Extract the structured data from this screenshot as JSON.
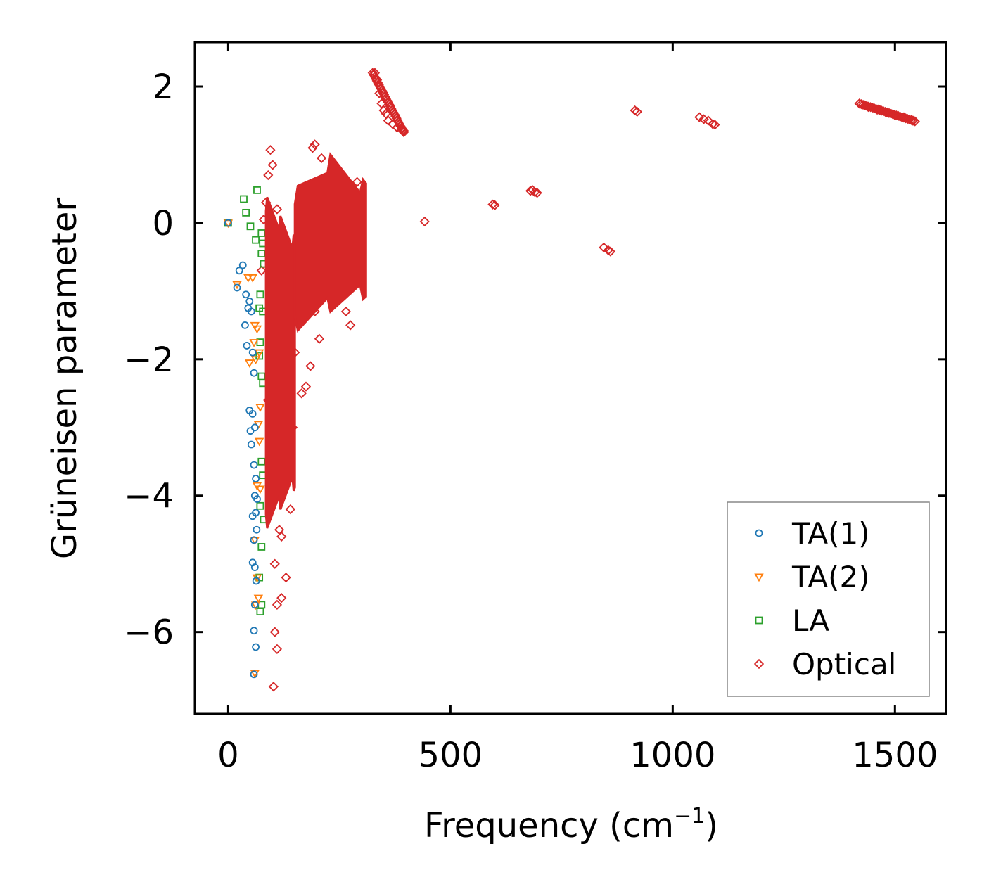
{
  "chart_data": {
    "type": "scatter",
    "title": "",
    "xlabel": "Frequency (cm",
    "xlabel_sup": "−1",
    "xlabel_close": ")",
    "ylabel": "Grüneisen parameter",
    "xlim": [
      -75,
      1615
    ],
    "ylim": [
      -7.2,
      2.65
    ],
    "xticks": [
      0,
      500,
      1000,
      1500
    ],
    "xtick_labels": [
      "0",
      "500",
      "1000",
      "1500"
    ],
    "yticks": [
      2,
      0,
      -2,
      -4,
      -6
    ],
    "ytick_labels": [
      "2",
      "0",
      "−2",
      "−4",
      "−6"
    ],
    "grid": false,
    "legend_position": "bottom-right",
    "series": [
      {
        "name": "TA(1)",
        "marker": "circle",
        "color": "#1f77b4",
        "points": [
          [
            0,
            0
          ],
          [
            25,
            -0.7
          ],
          [
            33,
            -0.62
          ],
          [
            20,
            -0.95
          ],
          [
            40,
            -1.05
          ],
          [
            48,
            -1.15
          ],
          [
            52,
            -1.3
          ],
          [
            45,
            -1.25
          ],
          [
            38,
            -1.5
          ],
          [
            42,
            -1.8
          ],
          [
            55,
            -1.9
          ],
          [
            58,
            -2.2
          ],
          [
            48,
            -2.75
          ],
          [
            55,
            -2.8
          ],
          [
            50,
            -3.05
          ],
          [
            60,
            -3.0
          ],
          [
            52,
            -3.25
          ],
          [
            58,
            -3.55
          ],
          [
            62,
            -3.75
          ],
          [
            60,
            -4.0
          ],
          [
            65,
            -4.05
          ],
          [
            55,
            -4.3
          ],
          [
            62,
            -4.25
          ],
          [
            58,
            -4.65
          ],
          [
            64,
            -4.5
          ],
          [
            55,
            -4.98
          ],
          [
            60,
            -5.05
          ],
          [
            63,
            -5.25
          ],
          [
            60,
            -5.6
          ],
          [
            58,
            -5.98
          ],
          [
            62,
            -6.22
          ],
          [
            58,
            -6.62
          ]
        ]
      },
      {
        "name": "TA(2)",
        "marker": "triangle-down",
        "color": "#ff7f0e",
        "points": [
          [
            0,
            0
          ],
          [
            20,
            -0.9
          ],
          [
            45,
            -0.8
          ],
          [
            55,
            -0.8
          ],
          [
            60,
            -1.5
          ],
          [
            65,
            -1.55
          ],
          [
            58,
            -1.75
          ],
          [
            70,
            -1.9
          ],
          [
            62,
            -2.0
          ],
          [
            48,
            -2.05
          ],
          [
            72,
            -2.7
          ],
          [
            68,
            -2.95
          ],
          [
            70,
            -3.2
          ],
          [
            65,
            -3.85
          ],
          [
            72,
            -3.9
          ],
          [
            60,
            -4.65
          ],
          [
            65,
            -5.2
          ],
          [
            68,
            -5.5
          ],
          [
            62,
            -5.6
          ],
          [
            60,
            -6.6
          ]
        ]
      },
      {
        "name": "LA",
        "marker": "square",
        "color": "#2ca02c",
        "points": [
          [
            0,
            0
          ],
          [
            35,
            0.35
          ],
          [
            40,
            0.15
          ],
          [
            65,
            0.48
          ],
          [
            50,
            -0.05
          ],
          [
            75,
            -0.15
          ],
          [
            78,
            -0.3
          ],
          [
            62,
            -0.25
          ],
          [
            75,
            -0.45
          ],
          [
            80,
            -0.6
          ],
          [
            72,
            -1.05
          ],
          [
            70,
            -1.25
          ],
          [
            78,
            -1.3
          ],
          [
            72,
            -1.75
          ],
          [
            70,
            -1.95
          ],
          [
            75,
            -2.25
          ],
          [
            78,
            -2.35
          ],
          [
            75,
            -3.5
          ],
          [
            78,
            -3.7
          ],
          [
            72,
            -4.15
          ],
          [
            80,
            -4.35
          ],
          [
            75,
            -4.75
          ],
          [
            70,
            -5.2
          ],
          [
            75,
            -5.6
          ],
          [
            72,
            -5.7
          ]
        ]
      },
      {
        "name": "Optical",
        "marker": "diamond",
        "color": "#d62728",
        "points": [
          [
            75,
            -0.7
          ],
          [
            80,
            0.05
          ],
          [
            85,
            0.3
          ],
          [
            95,
            1.07
          ],
          [
            100,
            0.85
          ],
          [
            90,
            0.7
          ],
          [
            110,
            0.2
          ],
          [
            100,
            -0.5
          ],
          [
            95,
            -1.2
          ],
          [
            105,
            -2.0
          ],
          [
            90,
            -2.6
          ],
          [
            110,
            -3.3
          ],
          [
            100,
            -4.0
          ],
          [
            115,
            -4.5
          ],
          [
            105,
            -5.0
          ],
          [
            110,
            -5.6
          ],
          [
            120,
            -5.5
          ],
          [
            105,
            -6.0
          ],
          [
            110,
            -6.25
          ],
          [
            102,
            -6.8
          ],
          [
            130,
            -5.2
          ],
          [
            120,
            -4.6
          ],
          [
            140,
            -4.2
          ],
          [
            125,
            -3.6
          ],
          [
            145,
            -3.0
          ],
          [
            135,
            -2.4
          ],
          [
            150,
            -1.9
          ],
          [
            140,
            -1.4
          ],
          [
            155,
            -1.0
          ],
          [
            160,
            -0.2
          ],
          [
            165,
            -2.5
          ],
          [
            175,
            -2.4
          ],
          [
            185,
            -2.1
          ],
          [
            195,
            -1.3
          ],
          [
            205,
            -1.7
          ],
          [
            190,
            1.1
          ],
          [
            195,
            1.15
          ],
          [
            210,
            0.95
          ],
          [
            230,
            0.7
          ],
          [
            250,
            0.5
          ],
          [
            265,
            -1.3
          ],
          [
            275,
            -1.5
          ],
          [
            280,
            0.5
          ],
          [
            290,
            0.6
          ],
          [
            300,
            0.2
          ],
          [
            330,
            2.2
          ],
          [
            335,
            2.1
          ],
          [
            340,
            1.9
          ],
          [
            345,
            1.75
          ],
          [
            350,
            1.65
          ],
          [
            355,
            1.6
          ],
          [
            360,
            1.5
          ],
          [
            370,
            1.45
          ],
          [
            380,
            1.4
          ],
          [
            390,
            1.37
          ],
          [
            395,
            1.35
          ],
          [
            442,
            0.02
          ],
          [
            595,
            0.27
          ],
          [
            600,
            0.26
          ],
          [
            680,
            0.47
          ],
          [
            685,
            0.48
          ],
          [
            690,
            0.45
          ],
          [
            695,
            0.44
          ],
          [
            845,
            -0.36
          ],
          [
            855,
            -0.4
          ],
          [
            860,
            -0.42
          ],
          [
            915,
            1.65
          ],
          [
            920,
            1.63
          ],
          [
            1060,
            1.55
          ],
          [
            1070,
            1.52
          ],
          [
            1080,
            1.5
          ],
          [
            1090,
            1.45
          ],
          [
            1095,
            1.44
          ],
          [
            1420,
            1.75
          ],
          [
            1440,
            1.7
          ],
          [
            1460,
            1.66
          ],
          [
            1480,
            1.62
          ],
          [
            1500,
            1.58
          ],
          [
            1520,
            1.55
          ],
          [
            1540,
            1.5
          ]
        ],
        "dense_regions": [
          {
            "x_range": [
              85,
              150
            ],
            "y_top": [
              0.3,
              -0.3
            ],
            "y_bottom": [
              -4.4,
              -3.8
            ]
          },
          {
            "x_range": [
              150,
              310
            ],
            "y_top": [
              0.4,
              0.9,
              0.5
            ],
            "y_bottom": [
              -1.5,
              -1.2,
              -1.0
            ]
          }
        ],
        "dense_segments": [
          {
            "x_range": [
              325,
              395
            ],
            "y_range": [
              2.2,
              1.33
            ]
          },
          {
            "x_range": [
              1420,
              1545
            ],
            "y_range": [
              1.75,
              1.49
            ]
          }
        ]
      }
    ]
  }
}
